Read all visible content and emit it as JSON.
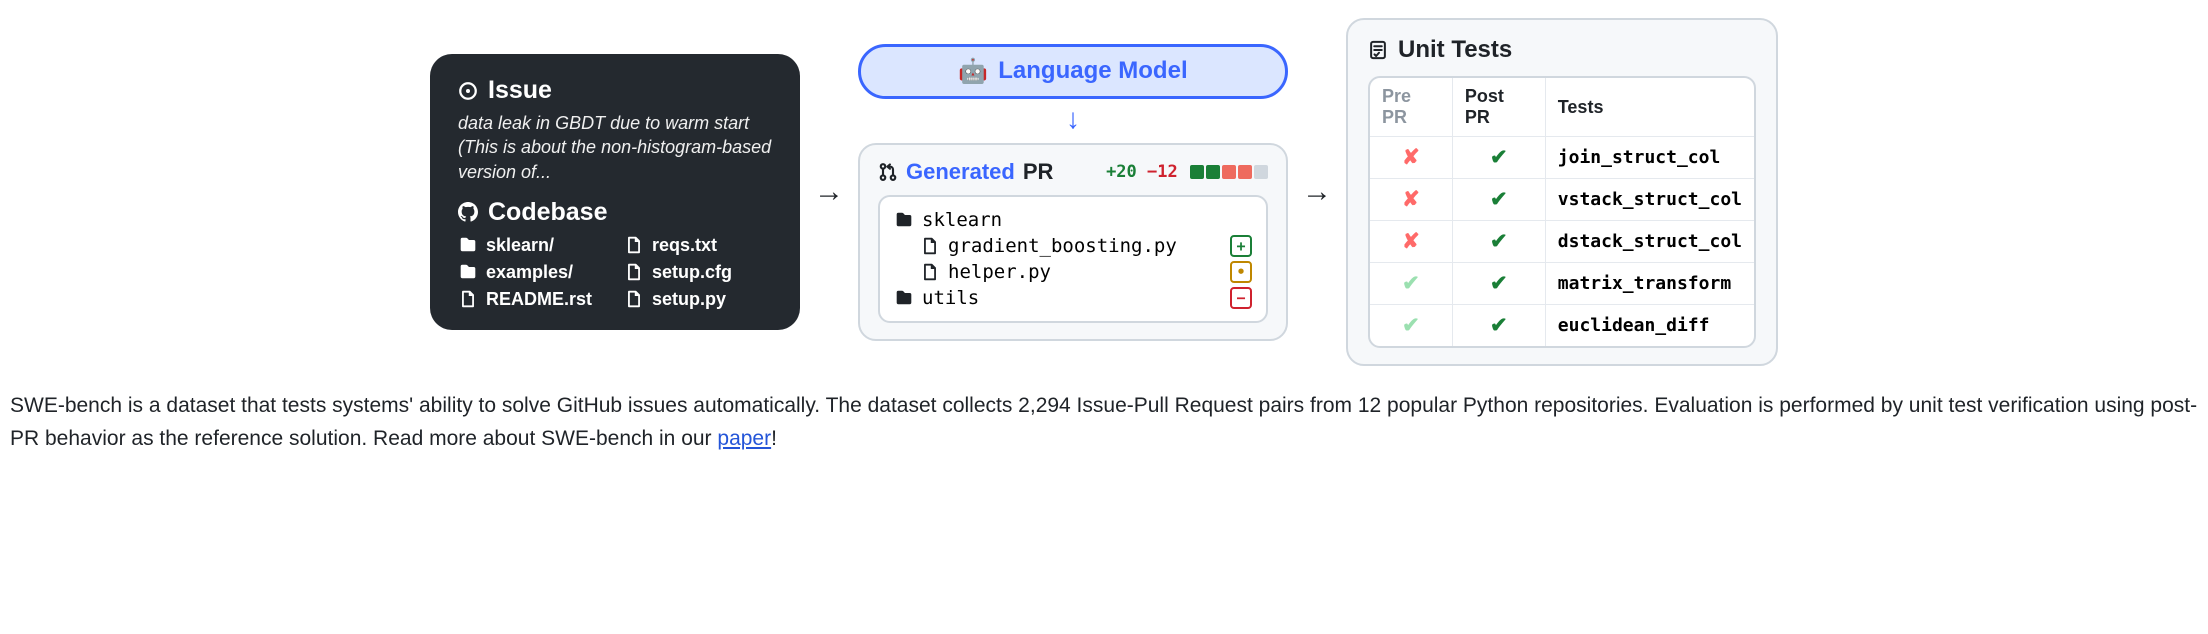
{
  "colors": {
    "dark_bg": "#24292f",
    "light_bg": "#f6f8fa",
    "border": "#d0d7de",
    "accent_blue": "#3a66ff",
    "pill_bg": "#dbe6ff",
    "green": "#1a7f37",
    "red": "#cf222e",
    "neutral_sq": "#d0d7de",
    "fail_red": "#ff6a69",
    "pass_light": "#9be0b0"
  },
  "issue": {
    "title": "Issue",
    "description": "data leak in GBDT due to warm start (This is about the non-histogram-based version of..."
  },
  "codebase": {
    "title": "Codebase",
    "files": [
      {
        "type": "folder",
        "name": "sklearn/"
      },
      {
        "type": "file",
        "name": "reqs.txt"
      },
      {
        "type": "folder",
        "name": "examples/"
      },
      {
        "type": "file",
        "name": "setup.cfg"
      },
      {
        "type": "file",
        "name": "README.rst"
      },
      {
        "type": "file",
        "name": "setup.py"
      }
    ]
  },
  "lm": {
    "emoji": "🤖",
    "label": "Language Model"
  },
  "pr": {
    "icon": "pr",
    "title_generated": "Generated",
    "title_pr": "PR",
    "additions": "+20",
    "deletions": "−12",
    "diff_squares": [
      "#1a7f37",
      "#1a7f37",
      "#ee6a5e",
      "#ee6a5e",
      "#d0d7de"
    ],
    "tree": [
      {
        "type": "folder",
        "indent": 0,
        "name": "sklearn",
        "badge": null
      },
      {
        "type": "file",
        "indent": 1,
        "name": "gradient_boosting.py",
        "badge": {
          "glyph": "+",
          "color": "#1a7f37"
        }
      },
      {
        "type": "file",
        "indent": 1,
        "name": "helper.py",
        "badge": {
          "glyph": "•",
          "color": "#bf8700"
        }
      },
      {
        "type": "folder",
        "indent": 0,
        "name": "utils",
        "badge": {
          "glyph": "−",
          "color": "#cf222e"
        }
      }
    ]
  },
  "tests": {
    "title": "Unit Tests",
    "columns": [
      "Pre PR",
      "Post PR",
      "Tests"
    ],
    "rows": [
      {
        "pre": "fail",
        "post": "pass",
        "name": "join_struct_col"
      },
      {
        "pre": "fail",
        "post": "pass",
        "name": "vstack_struct_col"
      },
      {
        "pre": "fail",
        "post": "pass",
        "name": "dstack_struct_col"
      },
      {
        "pre": "pass-light",
        "post": "pass",
        "name": "matrix_transform"
      },
      {
        "pre": "pass-light",
        "post": "pass",
        "name": "euclidean_diff"
      }
    ]
  },
  "description": {
    "text_before": "SWE-bench is a dataset that tests systems' ability to solve GitHub issues automatically. The dataset collects 2,294 Issue-Pull Request pairs from 12 popular Python repositories. Evaluation is performed by unit test verification using post-PR behavior as the reference solution. Read more about SWE-bench in our ",
    "link_text": "paper",
    "text_after": "!"
  }
}
